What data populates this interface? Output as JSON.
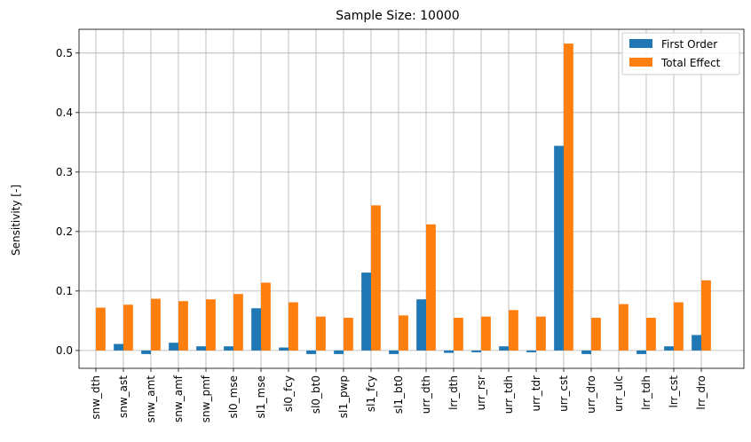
{
  "chart_data": {
    "type": "bar",
    "title": "Sample Size: 10000",
    "xlabel": "",
    "ylabel": "Sensitivity [-]",
    "ylim": [
      -0.03,
      0.54
    ],
    "yticks": [
      "0.0",
      "0.1",
      "0.2",
      "0.3",
      "0.4",
      "0.5"
    ],
    "grid": true,
    "legend_position": "top-right",
    "categories": [
      "snw_dth",
      "snw_ast",
      "snw_amt",
      "snw_amf",
      "snw_pmf",
      "sl0_mse",
      "sl1_mse",
      "sl0_fcy",
      "sl0_bt0",
      "sl1_pwp",
      "sl1_fcy",
      "sl1_bt0",
      "urr_dth",
      "lrr_dth",
      "urr_rsr",
      "urr_tdh",
      "urr_tdr",
      "urr_cst",
      "urr_dro",
      "urr_ulc",
      "lrr_tdh",
      "lrr_cst",
      "lrr_dro"
    ],
    "series": [
      {
        "name": "First Order",
        "color": "#1f77b4",
        "values": [
          0.0,
          0.011,
          -0.006,
          0.013,
          0.007,
          0.007,
          0.071,
          0.005,
          -0.006,
          -0.006,
          0.131,
          -0.006,
          0.086,
          -0.004,
          -0.003,
          0.007,
          -0.003,
          0.344,
          -0.006,
          0.0,
          -0.006,
          0.007,
          0.026
        ]
      },
      {
        "name": "Total Effect",
        "color": "#ff7f0e",
        "values": [
          0.072,
          0.077,
          0.087,
          0.083,
          0.086,
          0.095,
          0.114,
          0.081,
          0.057,
          0.055,
          0.244,
          0.059,
          0.212,
          0.055,
          0.057,
          0.068,
          0.057,
          0.516,
          0.055,
          0.078,
          0.055,
          0.081,
          0.118
        ]
      }
    ]
  }
}
